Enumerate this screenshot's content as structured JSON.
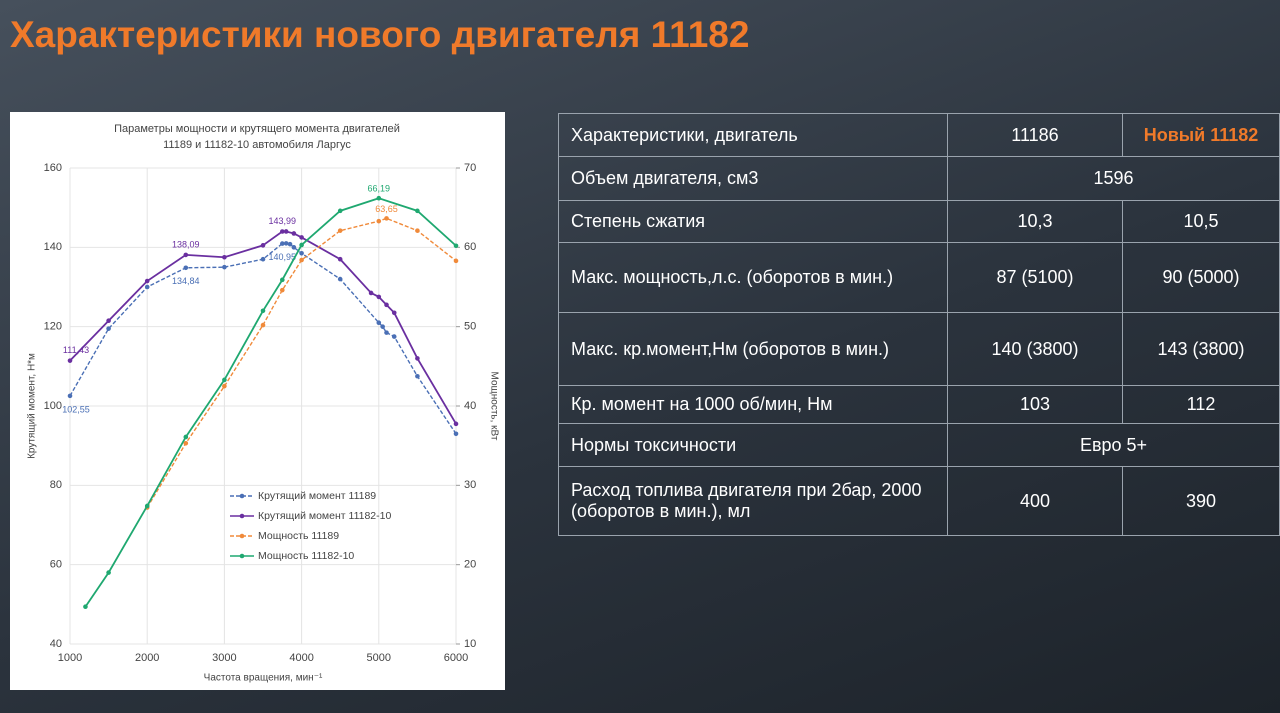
{
  "title": "Характеристики нового двигателя 11182",
  "chart_data": {
    "type": "line",
    "title": [
      "Параметры мощности и крутящего момента двигателей",
      "11189 и 11182-10 автомобиля Ларгус"
    ],
    "x_label": "Частота вращения, мин⁻¹",
    "y_label": "Крутящий момент, Н*м",
    "y2_label": "Мощность, кВт",
    "xlim": [
      1000,
      6000
    ],
    "xticks": [
      1000,
      2000,
      3000,
      4000,
      5000,
      6000
    ],
    "ylim": [
      40,
      160
    ],
    "yticks": [
      40,
      60,
      80,
      100,
      120,
      140,
      160
    ],
    "y2lim": [
      10,
      70
    ],
    "y2ticks": [
      10,
      20,
      30,
      40,
      50,
      60,
      70
    ],
    "grid": true,
    "series": [
      {
        "name": "Крутящий момент 11189",
        "color": "#4a6fb5",
        "dashed": true,
        "x": [
          1000,
          1500,
          2000,
          2500,
          3000,
          3500,
          3750,
          3800,
          3850,
          3900,
          4000,
          4500,
          5000,
          5050,
          5100,
          5200,
          5500,
          6000
        ],
        "values": [
          102.55,
          119.5,
          130,
          134.84,
          135,
          137,
          140.95,
          141,
          140.8,
          140,
          138.5,
          132,
          121,
          120,
          118.5,
          117.5,
          107.5,
          93
        ],
        "value_labels": [
          "102,55",
          null,
          null,
          "134,84",
          null,
          null,
          "140,95",
          null,
          null,
          null,
          null,
          null,
          null,
          null,
          null,
          null,
          null,
          null
        ]
      },
      {
        "name": "Крутящий момент 11182-10",
        "color": "#6a2fa0",
        "dashed": false,
        "x": [
          1000,
          1500,
          2000,
          2500,
          3000,
          3500,
          3750,
          3800,
          3900,
          4000,
          4500,
          4900,
          5000,
          5100,
          5200,
          5500,
          6000
        ],
        "values": [
          111.43,
          121.5,
          131.5,
          138.09,
          137.5,
          140.5,
          143.99,
          144,
          143.5,
          142.5,
          137,
          128.5,
          127.5,
          125.5,
          123.5,
          112,
          95.5
        ],
        "value_labels": [
          "111,43",
          null,
          null,
          "138,09",
          null,
          null,
          "143,99",
          null,
          null,
          null,
          null,
          null,
          null,
          null,
          null,
          null,
          null
        ]
      },
      {
        "name": "Мощность 11189",
        "color": "#f08a3a",
        "dashed": true,
        "axis": "y2",
        "x": [
          2000,
          2500,
          3000,
          3500,
          3750,
          4000,
          4500,
          5000,
          5100,
          5500,
          6000
        ],
        "values": [
          27.2,
          35.3,
          42.5,
          50.2,
          54.6,
          58.4,
          62.1,
          63.3,
          63.65,
          62.1,
          58.3
        ],
        "value_labels": [
          null,
          null,
          null,
          null,
          null,
          null,
          null,
          null,
          "63,65",
          null,
          null
        ]
      },
      {
        "name": "Мощность 11182-10",
        "color": "#1fa870",
        "dashed": false,
        "axis": "y2",
        "x": [
          1200,
          1500,
          2000,
          2500,
          3000,
          3500,
          3750,
          4000,
          4500,
          5000,
          5500,
          6000
        ],
        "values": [
          14.7,
          19,
          27.4,
          36.1,
          43.3,
          52,
          55.9,
          60.3,
          64.6,
          66.19,
          64.6,
          60.2
        ],
        "value_labels": [
          null,
          null,
          null,
          null,
          null,
          null,
          null,
          null,
          null,
          "66,19",
          null,
          null
        ]
      }
    ]
  },
  "table": {
    "rows": [
      [
        "Характеристики, двигатель",
        "11186",
        "Новый 11182"
      ],
      [
        "Объем двигателя, см3",
        "1596"
      ],
      [
        "Степень сжатия",
        "10,3",
        "10,5"
      ],
      [
        "Макс. мощность,л.с. (оборотов в мин.)",
        "87 (5100)",
        "90 (5000)"
      ],
      [
        "Макс. кр.момент,Нм (оборотов в мин.)",
        "140 (3800)",
        "143 (3800)"
      ],
      [
        "Кр. момент на 1000 об/мин, Нм",
        "103",
        "112"
      ],
      [
        "Нормы токсичности",
        "Евро 5+"
      ],
      [
        "Расход топлива двигателя при 2бар, 2000 (оборотов в мин.), мл",
        "400",
        "390"
      ]
    ]
  }
}
